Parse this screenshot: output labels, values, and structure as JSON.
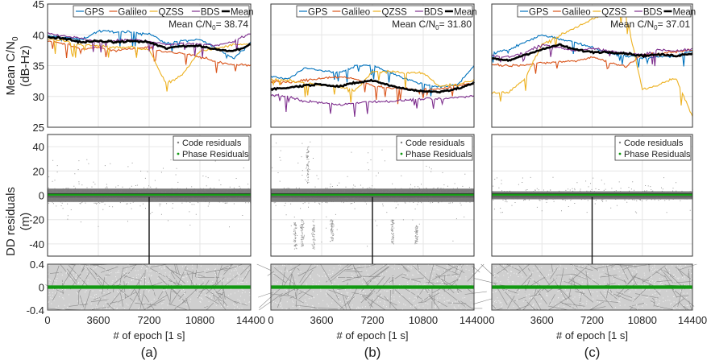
{
  "figure": {
    "y_label_top_line1": "Mean C/N",
    "y_label_top_sub": "0",
    "y_label_top_line2": "(dB-Hz)",
    "y_label_mid_line1": "DD residuals",
    "y_label_mid_line2": "(m)",
    "x_label": "# of epoch [1 s]"
  },
  "colors": {
    "GPS": "#0072BD",
    "Galileo": "#D95319",
    "QZSS": "#EDB120",
    "BDS": "#7E2F8E",
    "Mean": "#000000",
    "code": "#808080",
    "phase": "#119911",
    "grid": "#e6e6e6"
  },
  "chart_data": [
    {
      "panel": "(a)",
      "type": "line",
      "title": "",
      "xlabel": "# of epoch [1 s]",
      "ylabel": "Mean C/N0 (dB-Hz)",
      "xlim": [
        0,
        14400
      ],
      "ylim": [
        25,
        45
      ],
      "xticks": [
        0,
        3600,
        7200,
        10800,
        14400
      ],
      "yticks": [
        25,
        30,
        35,
        40,
        45
      ],
      "grid": true,
      "legend": {
        "placement": "top",
        "entries": [
          "GPS",
          "Galileo",
          "QZSS",
          "BDS",
          "Mean"
        ]
      },
      "annotation": {
        "prefix": "Mean C/N",
        "sub": "0",
        "suffix": "= 38.74"
      },
      "x": [
        0,
        1200,
        2400,
        3600,
        4800,
        6000,
        7200,
        8400,
        9600,
        10800,
        12000,
        13200,
        14400
      ],
      "series": [
        {
          "name": "GPS",
          "values": [
            39.8,
            39.6,
            39.2,
            40.6,
            40.5,
            40.4,
            40.2,
            38.6,
            39.0,
            39.2,
            37.8,
            36.2,
            38.8
          ]
        },
        {
          "name": "Galileo",
          "values": [
            39.0,
            38.6,
            37.6,
            38.0,
            37.4,
            37.8,
            38.0,
            37.2,
            37.0,
            36.4,
            35.6,
            35.2,
            35.0
          ]
        },
        {
          "name": "QZSS",
          "values": [
            39.4,
            39.0,
            38.4,
            38.2,
            38.0,
            38.0,
            37.6,
            32.0,
            33.6,
            37.4,
            37.8,
            38.4,
            38.4
          ]
        },
        {
          "name": "BDS",
          "values": [
            40.2,
            39.8,
            39.4,
            38.8,
            39.0,
            39.2,
            39.0,
            38.4,
            38.6,
            38.6,
            38.2,
            39.0,
            40.2
          ]
        },
        {
          "name": "Mean",
          "values": [
            39.6,
            39.4,
            38.8,
            39.0,
            38.8,
            39.0,
            38.8,
            37.8,
            38.2,
            38.2,
            37.6,
            37.4,
            38.4
          ]
        }
      ]
    },
    {
      "panel": "(b)",
      "type": "line",
      "title": "",
      "xlabel": "# of epoch [1 s]",
      "ylabel": "Mean C/N0 (dB-Hz)",
      "xlim": [
        0,
        14400
      ],
      "ylim": [
        25,
        45
      ],
      "xticks": [
        0,
        3600,
        7200,
        10800,
        14400
      ],
      "yticks": [
        25,
        30,
        35,
        40,
        45
      ],
      "grid": true,
      "legend": {
        "placement": "top",
        "entries": [
          "GPS",
          "Galileo",
          "QZSS",
          "BDS",
          "Mean"
        ]
      },
      "annotation": {
        "prefix": "Mean C/N",
        "sub": "0",
        "suffix": "= 31.80"
      },
      "x": [
        0,
        1200,
        2400,
        3600,
        4800,
        6000,
        7200,
        8400,
        9600,
        10800,
        12000,
        13200,
        14400
      ],
      "series": [
        {
          "name": "GPS",
          "values": [
            33.2,
            32.8,
            34.6,
            34.2,
            33.8,
            35.0,
            35.0,
            34.0,
            32.8,
            32.0,
            31.6,
            31.8,
            35.0
          ]
        },
        {
          "name": "Galileo",
          "values": [
            32.6,
            32.2,
            32.6,
            33.0,
            33.2,
            32.8,
            31.8,
            31.4,
            31.2,
            31.0,
            31.2,
            31.8,
            32.2
          ]
        },
        {
          "name": "QZSS",
          "values": [
            32.8,
            32.6,
            32.2,
            31.8,
            31.6,
            31.0,
            34.0,
            34.0,
            33.8,
            33.8,
            31.6,
            32.0,
            32.6
          ]
        },
        {
          "name": "BDS",
          "values": [
            30.2,
            30.0,
            29.2,
            29.0,
            28.6,
            29.0,
            29.2,
            29.2,
            29.4,
            29.6,
            29.6,
            29.8,
            30.2
          ]
        },
        {
          "name": "Mean",
          "values": [
            31.2,
            31.4,
            31.8,
            32.0,
            31.6,
            32.2,
            32.6,
            31.8,
            31.2,
            30.8,
            30.8,
            31.2,
            32.2
          ]
        }
      ]
    },
    {
      "panel": "(c)",
      "type": "line",
      "title": "",
      "xlabel": "# of epoch [1 s]",
      "ylabel": "Mean C/N0 (dB-Hz)",
      "xlim": [
        0,
        14400
      ],
      "ylim": [
        25,
        45
      ],
      "xticks": [
        0,
        3600,
        7200,
        10800,
        14400
      ],
      "yticks": [
        25,
        30,
        35,
        40,
        45
      ],
      "grid": true,
      "legend": {
        "placement": "top",
        "entries": [
          "GPS",
          "Galileo",
          "QZSS",
          "BDS",
          "Mean"
        ]
      },
      "annotation": {
        "prefix": "Mean C/N",
        "sub": "0",
        "suffix": "= 37.01"
      },
      "x": [
        0,
        1200,
        2400,
        3600,
        4800,
        6000,
        7200,
        8400,
        9600,
        10800,
        12000,
        13200,
        14400
      ],
      "series": [
        {
          "name": "GPS",
          "values": [
            37.0,
            37.6,
            38.8,
            40.0,
            39.4,
            38.8,
            38.0,
            37.0,
            36.6,
            36.2,
            36.4,
            36.6,
            37.4
          ]
        },
        {
          "name": "Galileo",
          "values": [
            35.2,
            35.0,
            35.2,
            35.4,
            35.6,
            35.8,
            36.4,
            35.6,
            34.8,
            36.8,
            37.0,
            37.2,
            37.6
          ]
        },
        {
          "name": "QZSS",
          "values": [
            30.6,
            30.6,
            33.0,
            38.4,
            39.8,
            41.2,
            42.6,
            43.4,
            43.8,
            31.0,
            32.0,
            33.0,
            26.8
          ]
        },
        {
          "name": "BDS",
          "values": [
            36.6,
            36.4,
            37.2,
            38.4,
            38.0,
            37.4,
            37.8,
            37.4,
            37.0,
            36.8,
            37.6,
            37.4,
            37.6
          ]
        },
        {
          "name": "Mean",
          "values": [
            36.2,
            35.8,
            36.8,
            37.6,
            38.4,
            37.6,
            37.2,
            37.2,
            37.0,
            36.6,
            36.8,
            36.6,
            37.0
          ]
        }
      ]
    },
    {
      "panel": "(a)",
      "type": "scatter",
      "xlabel": "# of epoch [1 s]",
      "ylabel": "DD residuals (m)",
      "xlim": [
        0,
        14400
      ],
      "ylim": [
        -50,
        50
      ],
      "xticks": [
        0,
        3600,
        7200,
        10800,
        14400
      ],
      "yticks": [
        -40,
        -20,
        0,
        20,
        40
      ],
      "grid": true,
      "legend": {
        "placement": "top-right",
        "entries": [
          "Code residuals",
          "Phase Residuals"
        ]
      },
      "series": [
        {
          "name": "Code residuals",
          "distribution": "dense band",
          "center": 0,
          "core_range": [
            -10,
            10
          ],
          "max_spread": [
            -30,
            30
          ]
        },
        {
          "name": "Phase Residuals",
          "distribution": "line",
          "center": 0
        }
      ]
    },
    {
      "panel": "(b)",
      "type": "scatter",
      "xlabel": "# of epoch [1 s]",
      "ylabel": "DD residuals (m)",
      "xlim": [
        0,
        14400
      ],
      "ylim": [
        -50,
        50
      ],
      "xticks": [
        0,
        3600,
        7200,
        10800,
        14400
      ],
      "yticks": [
        -40,
        -20,
        0,
        20,
        40
      ],
      "grid": true,
      "legend": {
        "placement": "top-right",
        "entries": [
          "Code residuals",
          "Phase Residuals"
        ]
      },
      "series": [
        {
          "name": "Code residuals",
          "distribution": "dense band with outlier clusters",
          "center": 0,
          "core_range": [
            -10,
            10
          ],
          "max_spread": [
            -45,
            40
          ]
        },
        {
          "name": "Phase Residuals",
          "distribution": "line",
          "center": 0
        }
      ]
    },
    {
      "panel": "(c)",
      "type": "scatter",
      "xlabel": "# of epoch [1 s]",
      "ylabel": "DD residuals (m)",
      "xlim": [
        0,
        14400
      ],
      "ylim": [
        -50,
        50
      ],
      "xticks": [
        0,
        3600,
        7200,
        10800,
        14400
      ],
      "yticks": [
        -40,
        -20,
        0,
        20,
        40
      ],
      "grid": true,
      "legend": {
        "placement": "top-right",
        "entries": [
          "Code residuals",
          "Phase Residuals"
        ]
      },
      "series": [
        {
          "name": "Code residuals",
          "distribution": "dense band",
          "center": 0,
          "core_range": [
            -6,
            6
          ],
          "max_spread": [
            -15,
            15
          ]
        },
        {
          "name": "Phase Residuals",
          "distribution": "line",
          "center": 0
        }
      ]
    },
    {
      "panel": "(a) zoom",
      "type": "scatter",
      "xlim": [
        0,
        14400
      ],
      "ylim": [
        -0.4,
        0.4
      ],
      "xticks": [
        0,
        3600,
        7200,
        10800,
        14400
      ],
      "xtick_labels": [
        "0",
        "3600",
        "7200",
        "10800",
        "14400"
      ],
      "yticks": [
        -0.4,
        0,
        0.4
      ],
      "ytick_labels": [
        "-0.4",
        "0",
        "0.4"
      ],
      "series": [
        {
          "name": "Code residuals",
          "distribution": "fills range"
        },
        {
          "name": "Phase Residuals",
          "distribution": "band",
          "center": 0,
          "range": [
            -0.03,
            0.03
          ]
        }
      ]
    },
    {
      "panel": "(b) zoom",
      "type": "scatter",
      "xlim": [
        0,
        14400
      ],
      "ylim": [
        -0.4,
        0.4
      ],
      "xticks": [
        0,
        3600,
        7200,
        10800,
        14400
      ],
      "xtick_labels": [
        "0",
        "3600",
        "7200",
        "10800",
        "14400"
      ],
      "series": [
        {
          "name": "Code residuals",
          "distribution": "fills range"
        },
        {
          "name": "Phase Residuals",
          "distribution": "band",
          "center": 0,
          "range": [
            -0.03,
            0.03
          ]
        }
      ]
    },
    {
      "panel": "(c) zoom",
      "type": "scatter",
      "xlim": [
        0,
        14400
      ],
      "ylim": [
        -0.4,
        0.4
      ],
      "xticks": [
        0,
        3600,
        7200,
        10800,
        14400
      ],
      "xtick_labels": [
        "0",
        "3600",
        "7200",
        "10800",
        "14400"
      ],
      "series": [
        {
          "name": "Code residuals",
          "distribution": "fills range"
        },
        {
          "name": "Phase Residuals",
          "distribution": "band",
          "center": 0,
          "range": [
            -0.03,
            0.03
          ]
        }
      ]
    }
  ],
  "panel_labels": [
    "(a)",
    "(b)",
    "(c)"
  ]
}
